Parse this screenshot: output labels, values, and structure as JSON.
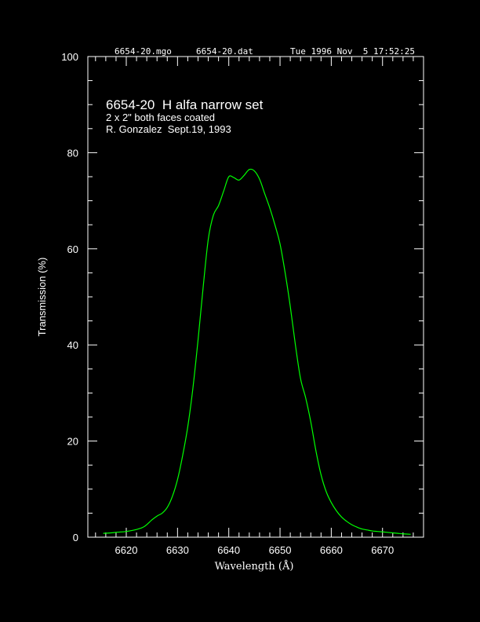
{
  "header": {
    "macro_file": "6654-20.mgo",
    "data_file": "6654-20.dat",
    "timestamp": "Tue 1996 Nov  5 17:52:25"
  },
  "colors": {
    "background": "#000000",
    "axes": "#ffffff",
    "curve": "#00ff00"
  },
  "chart_data": {
    "type": "line",
    "title": "6654-20  H alfa narrow set",
    "annotations": [
      "2 x 2\" both faces coated",
      "R. Gonzalez  Sept.19, 1993"
    ],
    "xlabel": "Wavelength (Å)",
    "ylabel": "Transmission (%)",
    "xlim": [
      6612.5,
      6678
    ],
    "ylim": [
      0,
      100
    ],
    "x_ticks": [
      6620,
      6630,
      6640,
      6650,
      6660,
      6670
    ],
    "x_tick_labels": [
      "6620",
      "6630",
      "6640",
      "6650",
      "6660",
      "6670"
    ],
    "y_ticks": [
      0,
      20,
      40,
      60,
      80,
      100
    ],
    "y_tick_labels": [
      "0",
      "20",
      "40",
      "60",
      "80",
      "100"
    ],
    "grid": false,
    "legend": "none",
    "series": [
      {
        "x": [
          6615.5,
          6617,
          6618,
          6620,
          6622,
          6623.5,
          6625,
          6626,
          6627,
          6628,
          6629,
          6630,
          6631,
          6632,
          6633,
          6634,
          6635,
          6636,
          6637,
          6638,
          6639,
          6640,
          6641,
          6642,
          6643,
          6644,
          6645,
          6646,
          6647,
          6648,
          6649,
          6650,
          6651,
          6652,
          6653,
          6654,
          6655,
          6656,
          6657,
          6658,
          6659,
          6660,
          6661,
          6662,
          6663,
          6664,
          6665,
          6666,
          6667,
          6668,
          6669,
          6670,
          6671,
          6672,
          6673,
          6674,
          6675.5
        ],
        "y": [
          0.8,
          0.9,
          1.0,
          1.2,
          1.6,
          2.2,
          3.6,
          4.4,
          5.0,
          6.2,
          8.5,
          12,
          17,
          23,
          31,
          41,
          52,
          62,
          67,
          69,
          72,
          75,
          74.8,
          74.3,
          75.3,
          76.5,
          76.2,
          74.5,
          71.5,
          68.5,
          65,
          61,
          55,
          48,
          40,
          33,
          29,
          24,
          18,
          13,
          9.5,
          7.2,
          5.5,
          4.2,
          3.3,
          2.6,
          2.1,
          1.7,
          1.5,
          1.3,
          1.2,
          1.1,
          1.0,
          0.9,
          0.8,
          0.7,
          0.6
        ]
      }
    ]
  }
}
